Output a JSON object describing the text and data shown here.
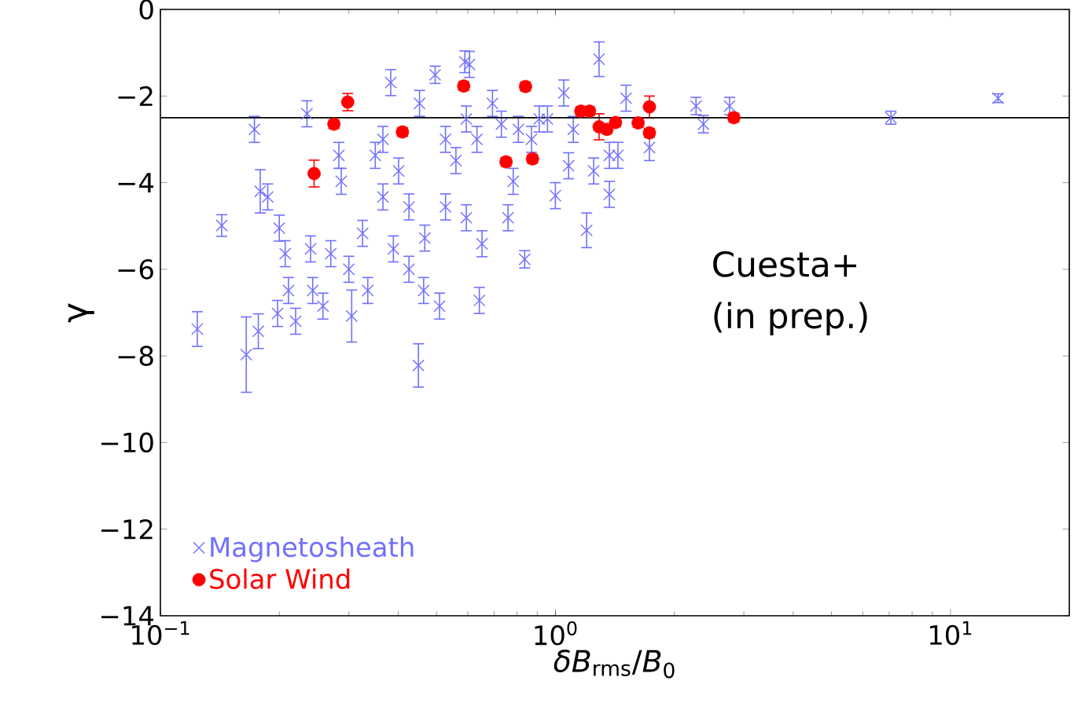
{
  "chart_data": {
    "type": "scatter",
    "xlabel": "*δB*$_{rms}$/*B*$_{0}$",
    "ylabel": "γ",
    "log": "x",
    "xlim": [
      0.1,
      20
    ],
    "ylim": [
      -14,
      0
    ],
    "xticks": [
      {
        "value": 0.1,
        "label": "10$^{−1}$"
      },
      {
        "value": 1,
        "label": "10$^{0}$"
      },
      {
        "value": 10,
        "label": "10$^{1}$"
      }
    ],
    "yticks": [
      {
        "value": -14,
        "label": "−14"
      },
      {
        "value": -12,
        "label": "−12"
      },
      {
        "value": -10,
        "label": "−10"
      },
      {
        "value": -8,
        "label": "−8"
      },
      {
        "value": -6,
        "label": "−6"
      },
      {
        "value": -4,
        "label": "−4"
      },
      {
        "value": -2,
        "label": "−2"
      },
      0
    ],
    "legend": "bottom left",
    "annotations": [
      "Cuesta+",
      "(in prep.)"
    ],
    "ref_lines": [
      {
        "axis": "y",
        "value": -2.5,
        "color": "#000000"
      }
    ],
    "series": [
      {
        "name": "Magnetosheath",
        "color": "#7070ff",
        "marker": "cross",
        "x": [
          0.124,
          0.143,
          0.165,
          0.173,
          0.177,
          0.179,
          0.187,
          0.2,
          0.198,
          0.207,
          0.211,
          0.22,
          0.235,
          0.24,
          0.243,
          0.258,
          0.27,
          0.283,
          0.287,
          0.305,
          0.3,
          0.325,
          0.335,
          0.35,
          0.366,
          0.366,
          0.383,
          0.389,
          0.401,
          0.426,
          0.426,
          0.45,
          0.453,
          0.467,
          0.464,
          0.496,
          0.509,
          0.527,
          0.527,
          0.56,
          0.59,
          0.595,
          0.595,
          0.642,
          0.633,
          0.652,
          0.693,
          0.759,
          0.782,
          0.836,
          0.806,
          0.91,
          0.606,
          1.29,
          1.05,
          1.11,
          1.37,
          1.44,
          1.25,
          1.37,
          1.51,
          1.73,
          2.27,
          2.37,
          2.76,
          7.07,
          13.2,
          0.87,
          0.73,
          0.955,
          1.08,
          1.2,
          1.0
        ],
        "values": [
          -7.38,
          -4.99,
          -7.97,
          -2.77,
          -7.43,
          -4.2,
          -4.33,
          -5.05,
          -7.02,
          -5.64,
          -6.49,
          -7.2,
          -2.41,
          -5.53,
          -6.49,
          -6.85,
          -5.64,
          -3.37,
          -3.97,
          -7.08,
          -6.0,
          -5.17,
          -6.49,
          -3.37,
          -3.0,
          -4.33,
          -1.69,
          -5.53,
          -3.73,
          -4.56,
          -6.0,
          -8.22,
          -2.17,
          -5.28,
          -6.49,
          -1.51,
          -6.85,
          -3.0,
          -4.56,
          -3.49,
          -1.21,
          -2.53,
          -4.81,
          -6.72,
          -3.0,
          -5.41,
          -2.17,
          -4.81,
          -3.97,
          -5.77,
          -2.77,
          -2.53,
          -1.27,
          -1.15,
          -1.93,
          -2.77,
          -3.37,
          -3.37,
          -3.73,
          -4.27,
          -2.05,
          -3.19,
          -2.23,
          -2.65,
          -2.23,
          -2.5,
          -2.05,
          -3.0,
          -2.65,
          -2.53,
          -3.61,
          -5.1,
          -4.3
        ],
        "errors": [
          0.4,
          0.25,
          0.87,
          0.3,
          0.4,
          0.5,
          0.3,
          0.3,
          0.3,
          0.3,
          0.3,
          0.3,
          0.3,
          0.3,
          0.3,
          0.3,
          0.3,
          0.3,
          0.3,
          0.6,
          0.3,
          0.3,
          0.3,
          0.3,
          0.3,
          0.3,
          0.3,
          0.3,
          0.3,
          0.3,
          0.3,
          0.5,
          0.3,
          0.3,
          0.3,
          0.2,
          0.3,
          0.3,
          0.3,
          0.3,
          0.25,
          0.3,
          0.3,
          0.3,
          0.3,
          0.3,
          0.3,
          0.3,
          0.3,
          0.2,
          0.3,
          0.3,
          0.3,
          0.4,
          0.3,
          0.3,
          0.3,
          0.3,
          0.3,
          0.3,
          0.3,
          0.3,
          0.2,
          0.2,
          0.2,
          0.15,
          0.1,
          0.3,
          0.3,
          0.3,
          0.3,
          0.4,
          0.3
        ]
      },
      {
        "name": "Solar Wind",
        "color": "#ff0000",
        "marker": "circle",
        "x": [
          0.245,
          0.275,
          0.298,
          0.41,
          0.586,
          0.75,
          0.84,
          0.875,
          1.16,
          1.22,
          1.29,
          1.35,
          1.42,
          1.62,
          1.73,
          1.73,
          2.83
        ],
        "values": [
          -3.79,
          -2.65,
          -2.14,
          -2.83,
          -1.77,
          -3.52,
          -1.78,
          -3.45,
          -2.35,
          -2.35,
          -2.71,
          -2.77,
          -2.61,
          -2.62,
          -2.25,
          -2.85,
          -2.5
        ],
        "errors": [
          0.31,
          0.1,
          0.2,
          0.1,
          0.1,
          0.1,
          0.1,
          0.1,
          0.1,
          0.1,
          0.3,
          0.1,
          0.1,
          0.1,
          0.25,
          0.1,
          0.1
        ]
      }
    ]
  }
}
